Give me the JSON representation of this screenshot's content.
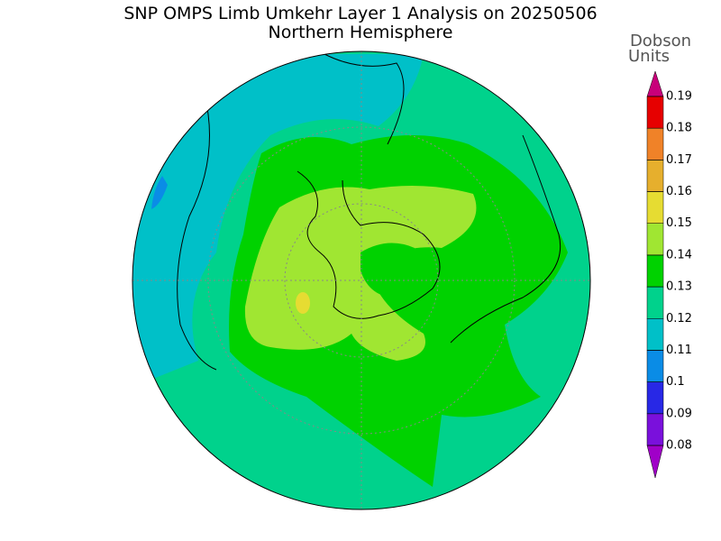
{
  "header": {
    "title": "SNP OMPS Limb Umkehr Layer 1 Analysis on 20250506",
    "subtitle": "Northern Hemisphere"
  },
  "colorbar": {
    "label": [
      "Dobson",
      "Units"
    ],
    "ticks": [
      0.08,
      0.09,
      0.1,
      0.11,
      0.12,
      0.13,
      0.14,
      0.15,
      0.16,
      0.17,
      0.18,
      0.19
    ],
    "colors": [
      "#a000c8",
      "#7a10dc",
      "#2828e6",
      "#0a8ce6",
      "#00c0c8",
      "#00d28c",
      "#00d200",
      "#a0e632",
      "#e6dc32",
      "#e6af2d",
      "#f08228",
      "#e60000",
      "#c8007a"
    ]
  }
}
